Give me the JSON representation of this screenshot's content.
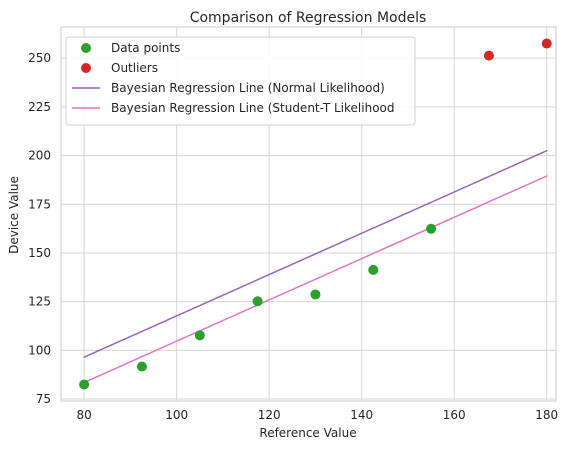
{
  "chart_data": {
    "type": "scatter",
    "title": "Comparison of Regression Models",
    "xlabel": "Reference Value",
    "ylabel": "Device Value",
    "xlim": [
      75,
      182
    ],
    "ylim": [
      74,
      266
    ],
    "x_ticks": [
      80,
      100,
      120,
      140,
      160,
      180
    ],
    "y_ticks": [
      75,
      100,
      125,
      150,
      175,
      200,
      225,
      250
    ],
    "grid": true,
    "legend_position": "top-left",
    "series": [
      {
        "name": "Data points",
        "kind": "scatter",
        "color": "#2ca02c",
        "points": [
          {
            "x": 80,
            "y": 82.5
          },
          {
            "x": 92.5,
            "y": 91.7
          },
          {
            "x": 105,
            "y": 107.7
          },
          {
            "x": 117.5,
            "y": 125.2
          },
          {
            "x": 130,
            "y": 128.7
          },
          {
            "x": 142.5,
            "y": 141.3
          },
          {
            "x": 155,
            "y": 162.4
          }
        ]
      },
      {
        "name": "Outliers",
        "kind": "scatter",
        "color": "#d62728",
        "points": [
          {
            "x": 167.5,
            "y": 251.3
          },
          {
            "x": 180,
            "y": 257.5
          }
        ]
      },
      {
        "name": "Bayesian Regression Line (Normal Likelihood)",
        "kind": "line",
        "color": "#9467bd",
        "points": [
          {
            "x": 80,
            "y": 96.5
          },
          {
            "x": 180,
            "y": 202.5
          }
        ]
      },
      {
        "name": "Bayesian Regression Line (Student-T Likelihood",
        "kind": "line",
        "color": "#e377c2",
        "points": [
          {
            "x": 80,
            "y": 83.5
          },
          {
            "x": 180,
            "y": 189.5
          }
        ]
      }
    ]
  }
}
